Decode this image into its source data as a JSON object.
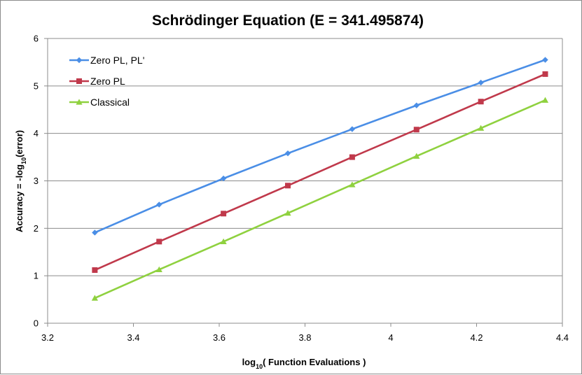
{
  "chart_data": {
    "type": "line",
    "title": "Schrödinger Equation (E = 341.495874)",
    "xlabel": {
      "prefix": "log",
      "sub": "10",
      "suffix": "( Function Evaluations )"
    },
    "ylabel": {
      "prefix": "Accuracy = -log",
      "sub": "10",
      "suffix": "(error)"
    },
    "xlim": [
      3.2,
      4.4
    ],
    "ylim": [
      0,
      6
    ],
    "x_ticks": [
      3.2,
      3.4,
      3.6,
      3.8,
      4,
      4.2,
      4.4
    ],
    "x_tick_labels": [
      "3.2",
      "3.4",
      "3.6",
      "3.8",
      "4",
      "4.2",
      "4.4"
    ],
    "y_ticks": [
      0,
      1,
      2,
      3,
      4,
      5,
      6
    ],
    "y_tick_labels": [
      "0",
      "1",
      "2",
      "3",
      "4",
      "5",
      "6"
    ],
    "grid": "horizontal",
    "legend_position": "top-left",
    "series": [
      {
        "name": "Zero PL, PL'",
        "color": "#4a8ee6",
        "marker": "diamond",
        "x": [
          3.31,
          3.46,
          3.61,
          3.76,
          3.91,
          4.06,
          4.21,
          4.36
        ],
        "y": [
          1.91,
          2.5,
          3.05,
          3.58,
          4.09,
          4.59,
          5.07,
          5.55
        ]
      },
      {
        "name": "Zero PL",
        "color": "#c0394b",
        "marker": "square",
        "x": [
          3.31,
          3.46,
          3.61,
          3.76,
          3.91,
          4.06,
          4.21,
          4.36
        ],
        "y": [
          1.12,
          1.72,
          2.31,
          2.9,
          3.5,
          4.08,
          4.67,
          5.25
        ]
      },
      {
        "name": "Classical",
        "color": "#8fd13f",
        "marker": "triangle",
        "x": [
          3.31,
          3.46,
          3.61,
          3.76,
          3.91,
          4.06,
          4.21,
          4.36
        ],
        "y": [
          0.53,
          1.13,
          1.72,
          2.32,
          2.92,
          3.52,
          4.11,
          4.7
        ]
      }
    ]
  }
}
